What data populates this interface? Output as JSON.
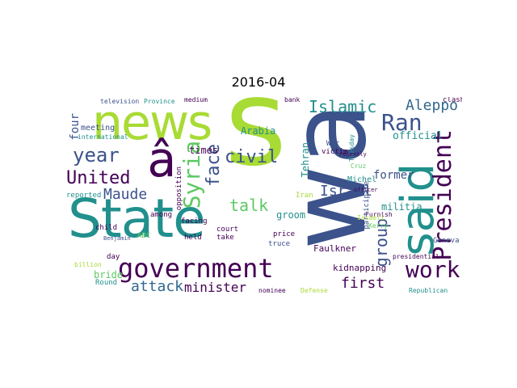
{
  "title": "2016-04",
  "palette": {
    "dark_purple": "#440154",
    "indigo": "#3b528b",
    "teal": "#21908d",
    "blue": "#31688e",
    "green": "#5ec962",
    "lime": "#a8db34",
    "light_green": "#b5de2b"
  },
  "words": [
    "news",
    "s",
    "wa",
    "State",
    "said",
    "â",
    "government",
    "President",
    "Islamic",
    "Ran",
    "year",
    "United",
    "Syria",
    "face",
    "civil",
    "Maude",
    "talk",
    "Aleppo",
    "work",
    "group",
    "Israel",
    "attack",
    "minister",
    "first",
    "Arabia",
    "four",
    "times",
    "opposition",
    "official",
    "former",
    "War",
    "victim",
    "Tehran",
    "militia",
    "Michel",
    "groom",
    "bride",
    "Faulkner",
    "kidnapping",
    "reported",
    "meeting",
    "television",
    "Province",
    "medium",
    "bank",
    "clash",
    "ABC",
    "Round",
    "child",
    "held",
    "among",
    "facing",
    "take",
    "court",
    "price",
    "truce",
    "Geneva",
    "Republican",
    "presidential",
    "Defense",
    "nominee",
    "Furnish",
    "participate",
    "day",
    "billion",
    "international",
    "Benjamin",
    "Kerry",
    "Cruz",
    "Tuesday",
    "Israeli",
    "recently",
    "officer",
    "Iran"
  ]
}
